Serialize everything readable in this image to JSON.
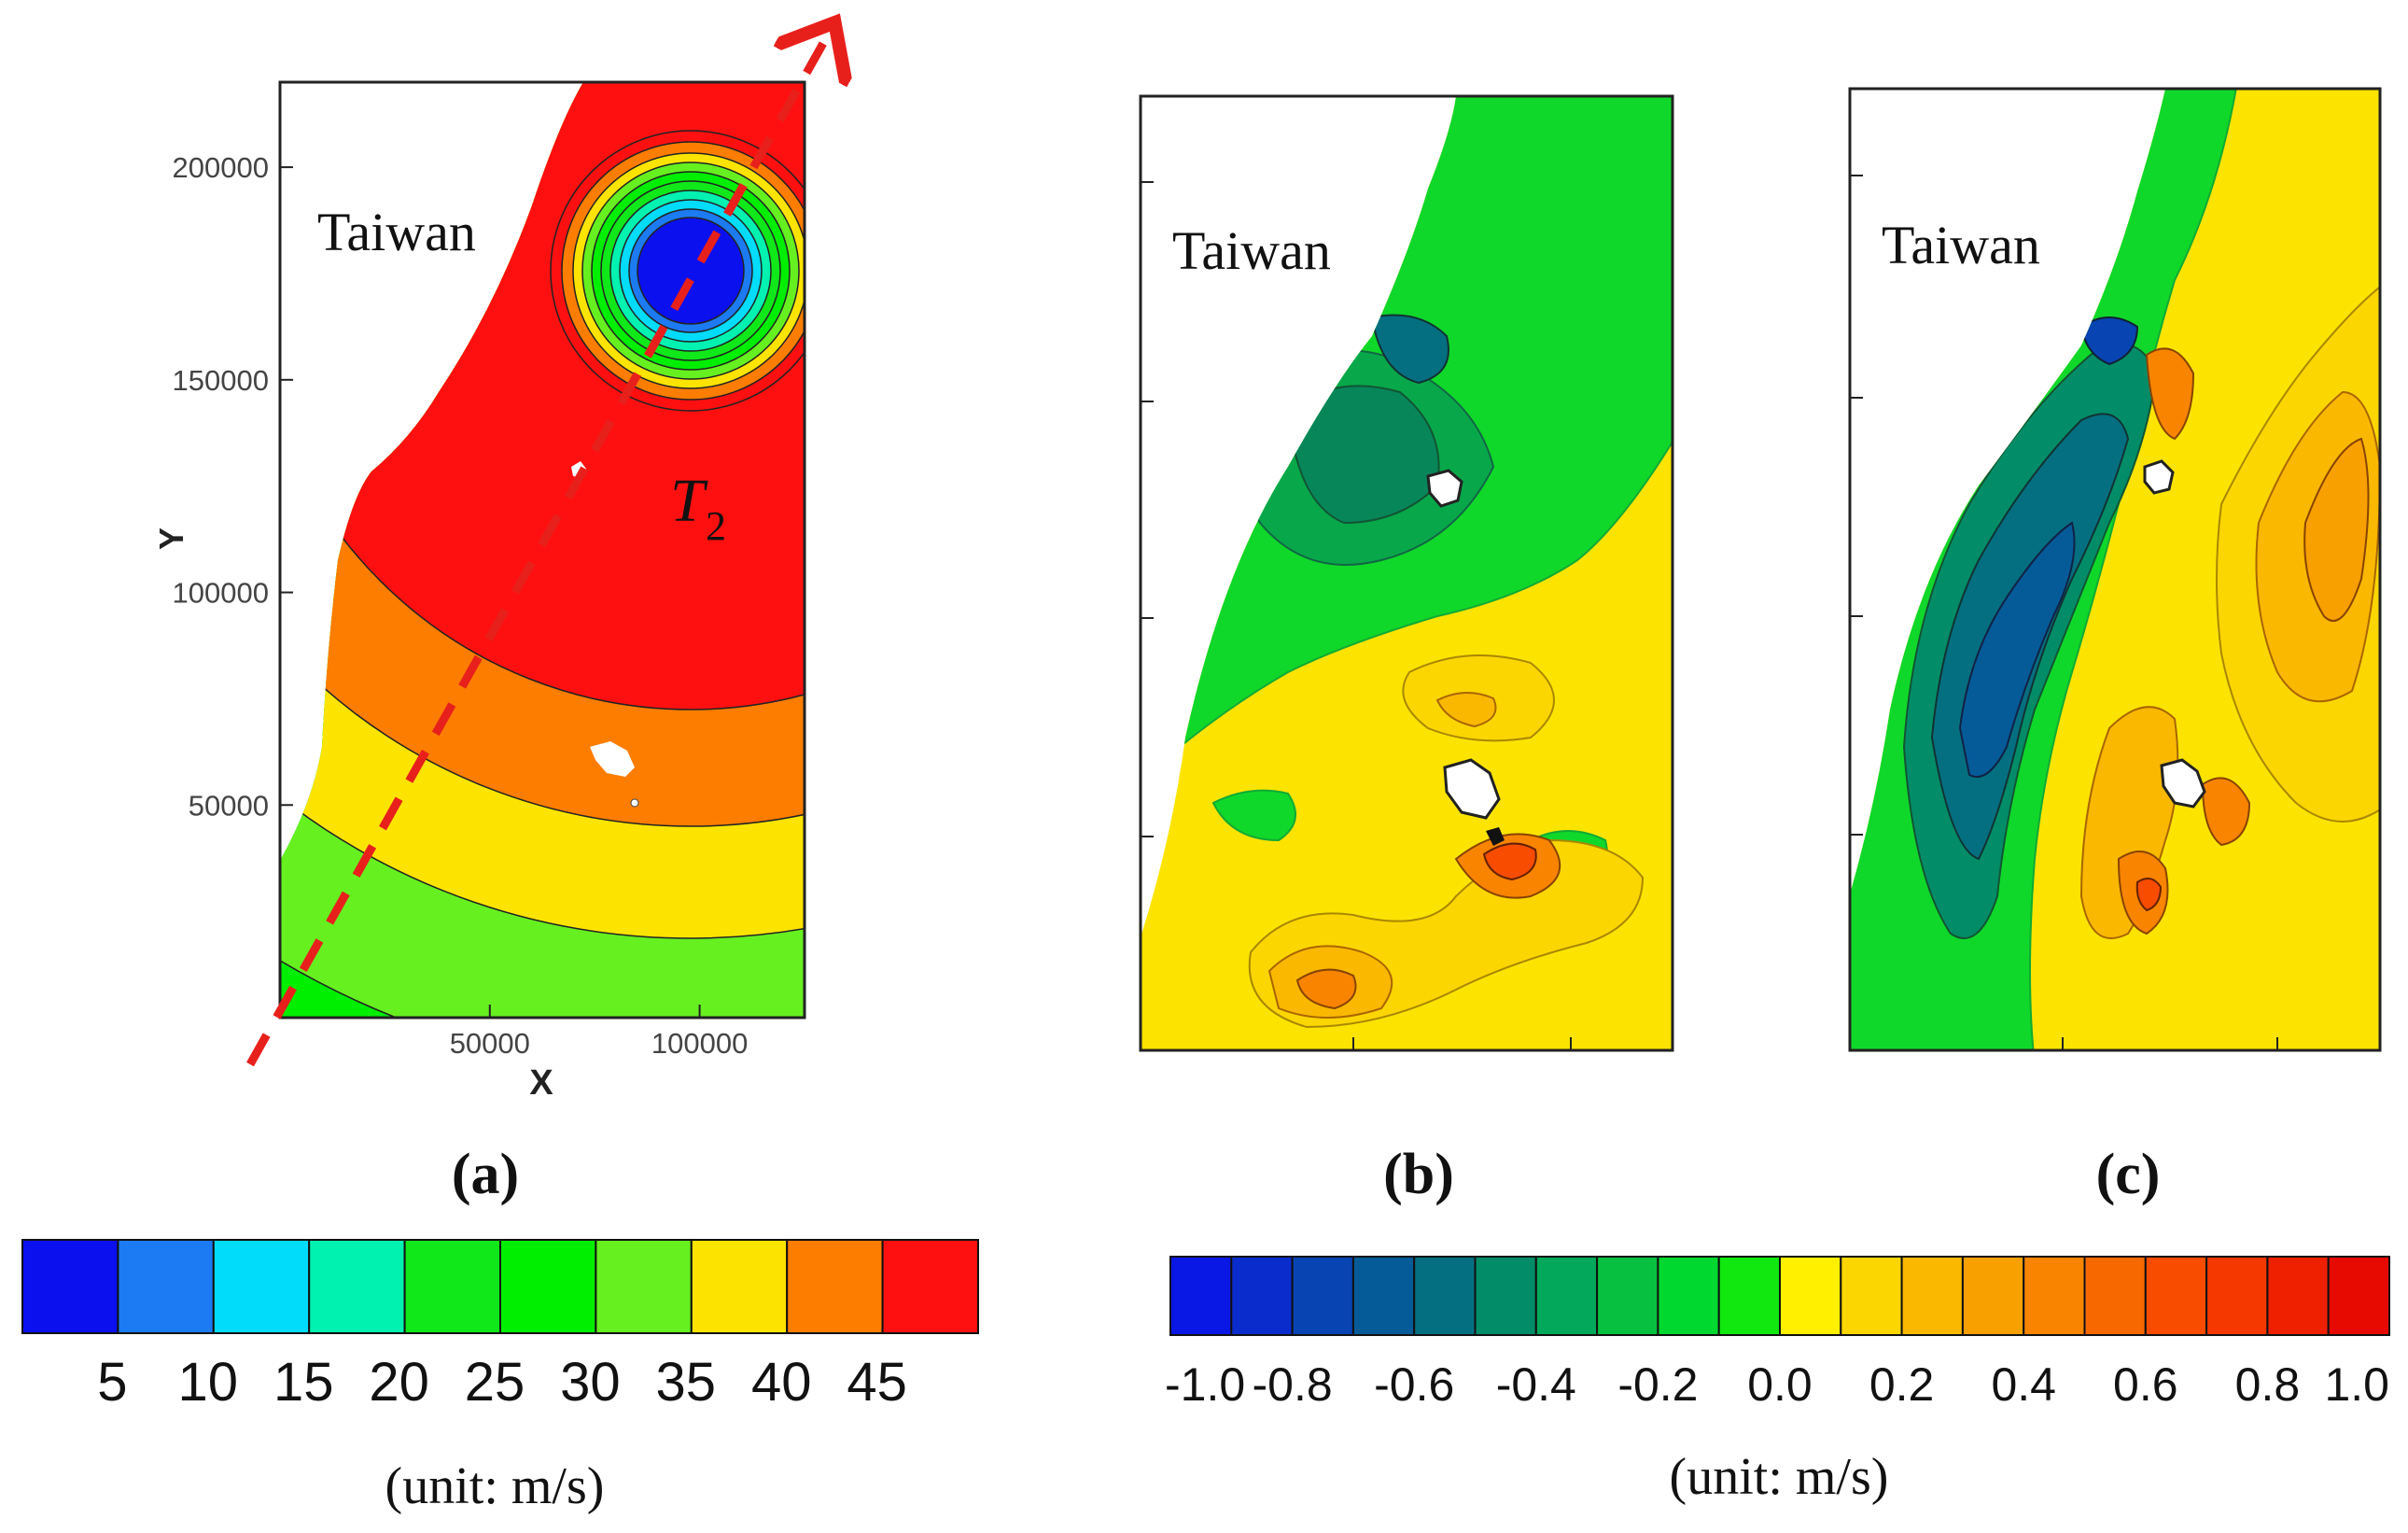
{
  "chart_data": [
    {
      "type": "contour",
      "panel_label": "(a)",
      "label_text": "Taiwan",
      "track_label": "T",
      "track_subscript": "2",
      "xlabel": "X",
      "ylabel": "Y",
      "x_ticks": [
        "50000",
        "100000"
      ],
      "x_tick_values": [
        50000,
        100000
      ],
      "y_ticks": [
        "200000",
        "150000",
        "100000",
        "50000"
      ],
      "y_tick_values": [
        200000,
        150000,
        100000,
        50000
      ],
      "xlim": [
        0,
        125000
      ],
      "ylim": [
        0,
        220000
      ],
      "colorbar": {
        "labels": [
          "5",
          "10",
          "15",
          "20",
          "25",
          "30",
          "35",
          "40",
          "45"
        ],
        "colors": [
          "#0a10ee",
          "#1c7bf2",
          "#00dcfa",
          "#00f2b0",
          "#10e81a",
          "#00ee00",
          "#66f020",
          "#fce400",
          "#fd7d00",
          "#fe1010"
        ],
        "unit": "(unit: m/s)"
      }
    },
    {
      "type": "contour",
      "panel_label": "(b)",
      "label_text": "Taiwan"
    },
    {
      "type": "contour",
      "panel_label": "(c)",
      "label_text": "Taiwan",
      "colorbar": {
        "labels": [
          "-1.0",
          "-0.8",
          "-0.6",
          "-0.4",
          "-0.2",
          "0.0",
          "0.2",
          "0.4",
          "0.6",
          "0.8",
          "1.0"
        ],
        "colors": [
          "#0a18e6",
          "#0a2ccc",
          "#0844b2",
          "#055b98",
          "#046f80",
          "#028d68",
          "#04a85a",
          "#08c040",
          "#00d830",
          "#10e810",
          "#fff000",
          "#fcd600",
          "#fab800",
          "#f8a000",
          "#f88400",
          "#f86800",
          "#f84c00",
          "#f43800",
          "#ee2000",
          "#e60a00"
        ],
        "unit": "(unit: m/s)"
      }
    }
  ]
}
